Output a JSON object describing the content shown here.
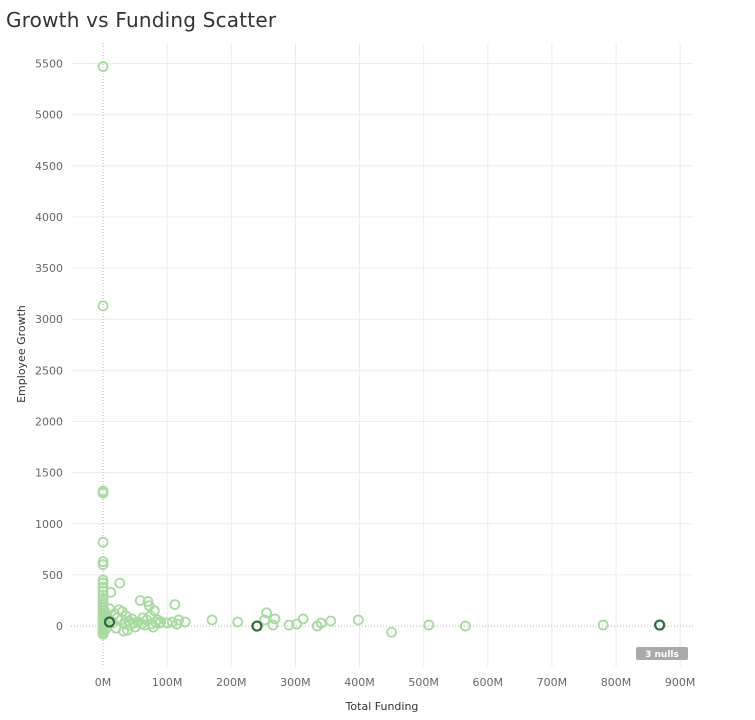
{
  "chart_data": {
    "type": "scatter",
    "title": "Growth vs Funding Scatter",
    "xlabel": "Total Funding",
    "ylabel": "Employee Growth",
    "x_unit": "M",
    "xlim": [
      -50,
      920
    ],
    "ylim": [
      -400,
      5700
    ],
    "x_ticks": [
      "0M",
      "100M",
      "200M",
      "300M",
      "400M",
      "500M",
      "600M",
      "700M",
      "800M",
      "900M"
    ],
    "y_ticks": [
      "5500",
      "5000",
      "4500",
      "4000",
      "3500",
      "3000",
      "2500",
      "2000",
      "1500",
      "1000",
      "500",
      "0"
    ],
    "grid": true,
    "marker": "hollow-circle",
    "colors": {
      "normal": "#a8d9a0",
      "highlight": "#2e6b3e",
      "null_badge": "#a9a9a9"
    },
    "null_badge": "3 nulls",
    "series": [
      {
        "points": [
          [
            0,
            5470
          ],
          [
            0,
            3130
          ],
          [
            0,
            1320
          ],
          [
            0,
            1300
          ],
          [
            0,
            820
          ],
          [
            0,
            630
          ],
          [
            0,
            600
          ],
          [
            0,
            450
          ],
          [
            0,
            420
          ],
          [
            0,
            380
          ],
          [
            0,
            340
          ],
          [
            0,
            300
          ],
          [
            0,
            270
          ],
          [
            0,
            240
          ],
          [
            0,
            210
          ],
          [
            0,
            180
          ],
          [
            0,
            150
          ],
          [
            0,
            120
          ],
          [
            0,
            100
          ],
          [
            0,
            80
          ],
          [
            0,
            60
          ],
          [
            0,
            40
          ],
          [
            0,
            20
          ],
          [
            0,
            0
          ],
          [
            0,
            -20
          ],
          [
            0,
            -40
          ],
          [
            0,
            -60
          ],
          [
            0,
            -80
          ],
          [
            2,
            150
          ],
          [
            2,
            90
          ],
          [
            3,
            50
          ],
          [
            4,
            -30
          ],
          [
            5,
            20
          ],
          [
            6,
            110
          ],
          [
            8,
            70
          ],
          [
            10,
            170
          ],
          [
            12,
            330
          ],
          [
            15,
            30
          ],
          [
            18,
            120
          ],
          [
            20,
            -20
          ],
          [
            22,
            80
          ],
          [
            25,
            160
          ],
          [
            26,
            420
          ],
          [
            28,
            60
          ],
          [
            30,
            140
          ],
          [
            32,
            -50
          ],
          [
            34,
            20
          ],
          [
            36,
            100
          ],
          [
            38,
            -40
          ],
          [
            40,
            50
          ],
          [
            42,
            10
          ],
          [
            45,
            70
          ],
          [
            48,
            30
          ],
          [
            50,
            -10
          ],
          [
            55,
            40
          ],
          [
            58,
            250
          ],
          [
            60,
            20
          ],
          [
            62,
            80
          ],
          [
            65,
            10
          ],
          [
            68,
            60
          ],
          [
            70,
            240
          ],
          [
            72,
            200
          ],
          [
            74,
            100
          ],
          [
            76,
            20
          ],
          [
            78,
            -10
          ],
          [
            80,
            150
          ],
          [
            82,
            40
          ],
          [
            85,
            60
          ],
          [
            88,
            30
          ],
          [
            90,
            40
          ],
          [
            100,
            30
          ],
          [
            108,
            40
          ],
          [
            112,
            210
          ],
          [
            115,
            20
          ],
          [
            118,
            60
          ],
          [
            128,
            40
          ],
          [
            170,
            60
          ],
          [
            210,
            40
          ],
          [
            252,
            60
          ],
          [
            255,
            130
          ],
          [
            265,
            10
          ],
          [
            268,
            70
          ],
          [
            290,
            10
          ],
          [
            302,
            20
          ],
          [
            312,
            70
          ],
          [
            334,
            0
          ],
          [
            340,
            30
          ],
          [
            355,
            50
          ],
          [
            398,
            60
          ],
          [
            450,
            -60
          ],
          [
            508,
            10
          ],
          [
            565,
            0
          ],
          [
            780,
            10
          ]
        ]
      },
      {
        "name": "highlighted",
        "points": [
          [
            10,
            40
          ],
          [
            240,
            0
          ],
          [
            868,
            10
          ]
        ]
      }
    ]
  }
}
